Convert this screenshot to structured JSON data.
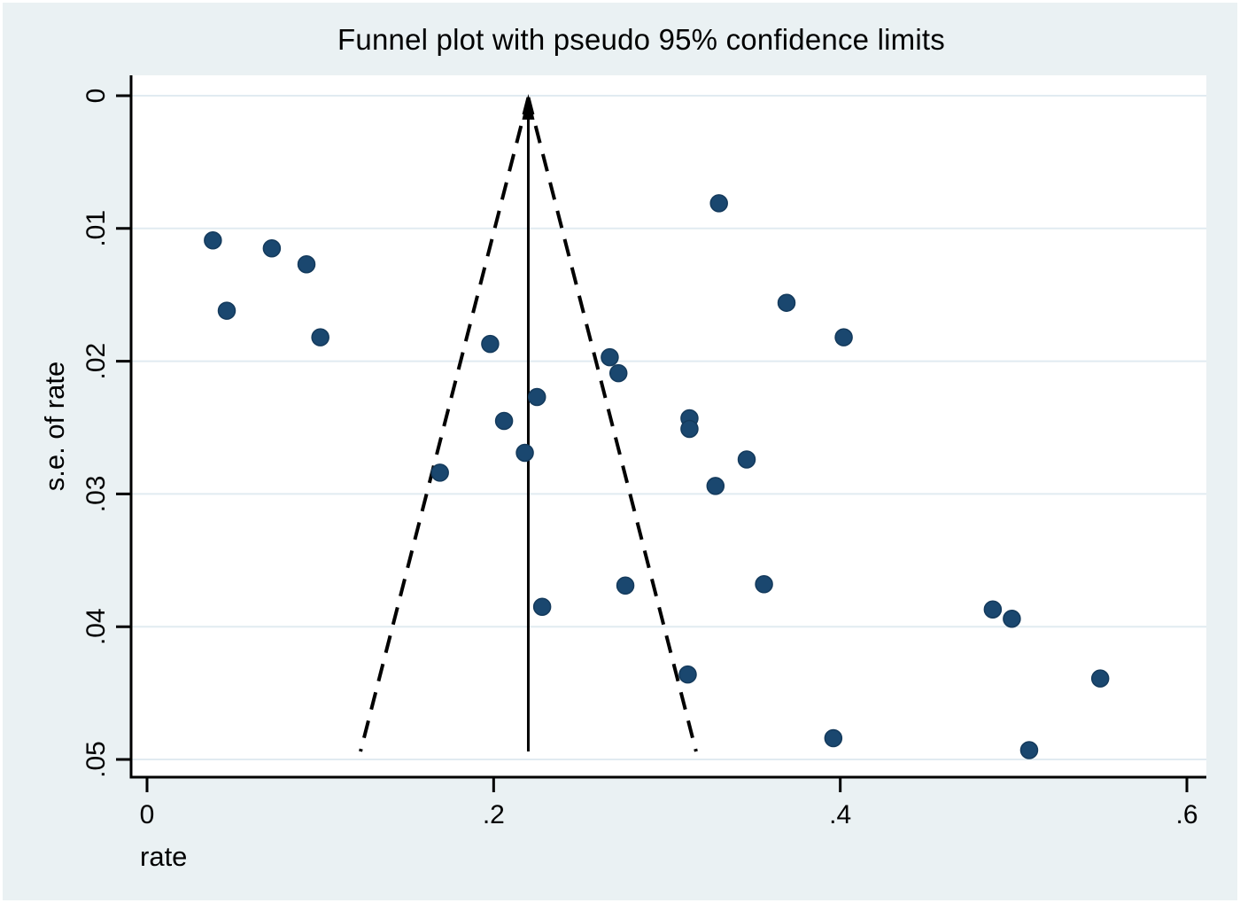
{
  "colors": {
    "background": "#eaf1f3",
    "plot_background": "#ffffff",
    "grid": "#e1ebf1",
    "axis": "#000000",
    "funnel_line": "#000000",
    "marker_fill": "#1a476f",
    "marker_edge": "#143a5c"
  },
  "chart_data": {
    "type": "scatter",
    "title": "Funnel plot with pseudo 95% confidence limits",
    "xlabel": "rate",
    "ylabel": "s.e. of rate",
    "grid": true,
    "legend": "none",
    "x_axis": {
      "ticks": [
        0,
        0.2,
        0.4,
        0.6
      ],
      "tick_labels": [
        "0",
        ".2",
        ".4",
        ".6"
      ],
      "range": [
        -0.009,
        0.611
      ]
    },
    "y_axis": {
      "ticks": [
        0,
        0.01,
        0.02,
        0.03,
        0.04,
        0.05
      ],
      "tick_labels": [
        "0",
        ".01",
        ".02",
        ".03",
        ".04",
        ".05"
      ],
      "range": [
        -0.0015,
        0.0513
      ],
      "inverted": true
    },
    "funnel": {
      "pooled_estimate": 0.22,
      "z": 1.96,
      "se_start": 0,
      "se_end": 0.0494,
      "center_line_style": "solid-with-up-arrow",
      "limit_line_style": "dashed"
    },
    "points": [
      [
        0.038,
        0.0109
      ],
      [
        0.072,
        0.0115
      ],
      [
        0.092,
        0.0127
      ],
      [
        0.046,
        0.0162
      ],
      [
        0.1,
        0.0182
      ],
      [
        0.198,
        0.0187
      ],
      [
        0.267,
        0.0197
      ],
      [
        0.272,
        0.0209
      ],
      [
        0.225,
        0.0227
      ],
      [
        0.206,
        0.0245
      ],
      [
        0.218,
        0.0269
      ],
      [
        0.169,
        0.0284
      ],
      [
        0.33,
        0.0081
      ],
      [
        0.369,
        0.0156
      ],
      [
        0.402,
        0.0182
      ],
      [
        0.313,
        0.0243
      ],
      [
        0.313,
        0.0251
      ],
      [
        0.346,
        0.0274
      ],
      [
        0.328,
        0.0294
      ],
      [
        0.228,
        0.0385
      ],
      [
        0.276,
        0.0369
      ],
      [
        0.356,
        0.0368
      ],
      [
        0.312,
        0.0436
      ],
      [
        0.396,
        0.0484
      ],
      [
        0.488,
        0.0387
      ],
      [
        0.499,
        0.0394
      ],
      [
        0.55,
        0.0439
      ],
      [
        0.509,
        0.0493
      ]
    ]
  }
}
